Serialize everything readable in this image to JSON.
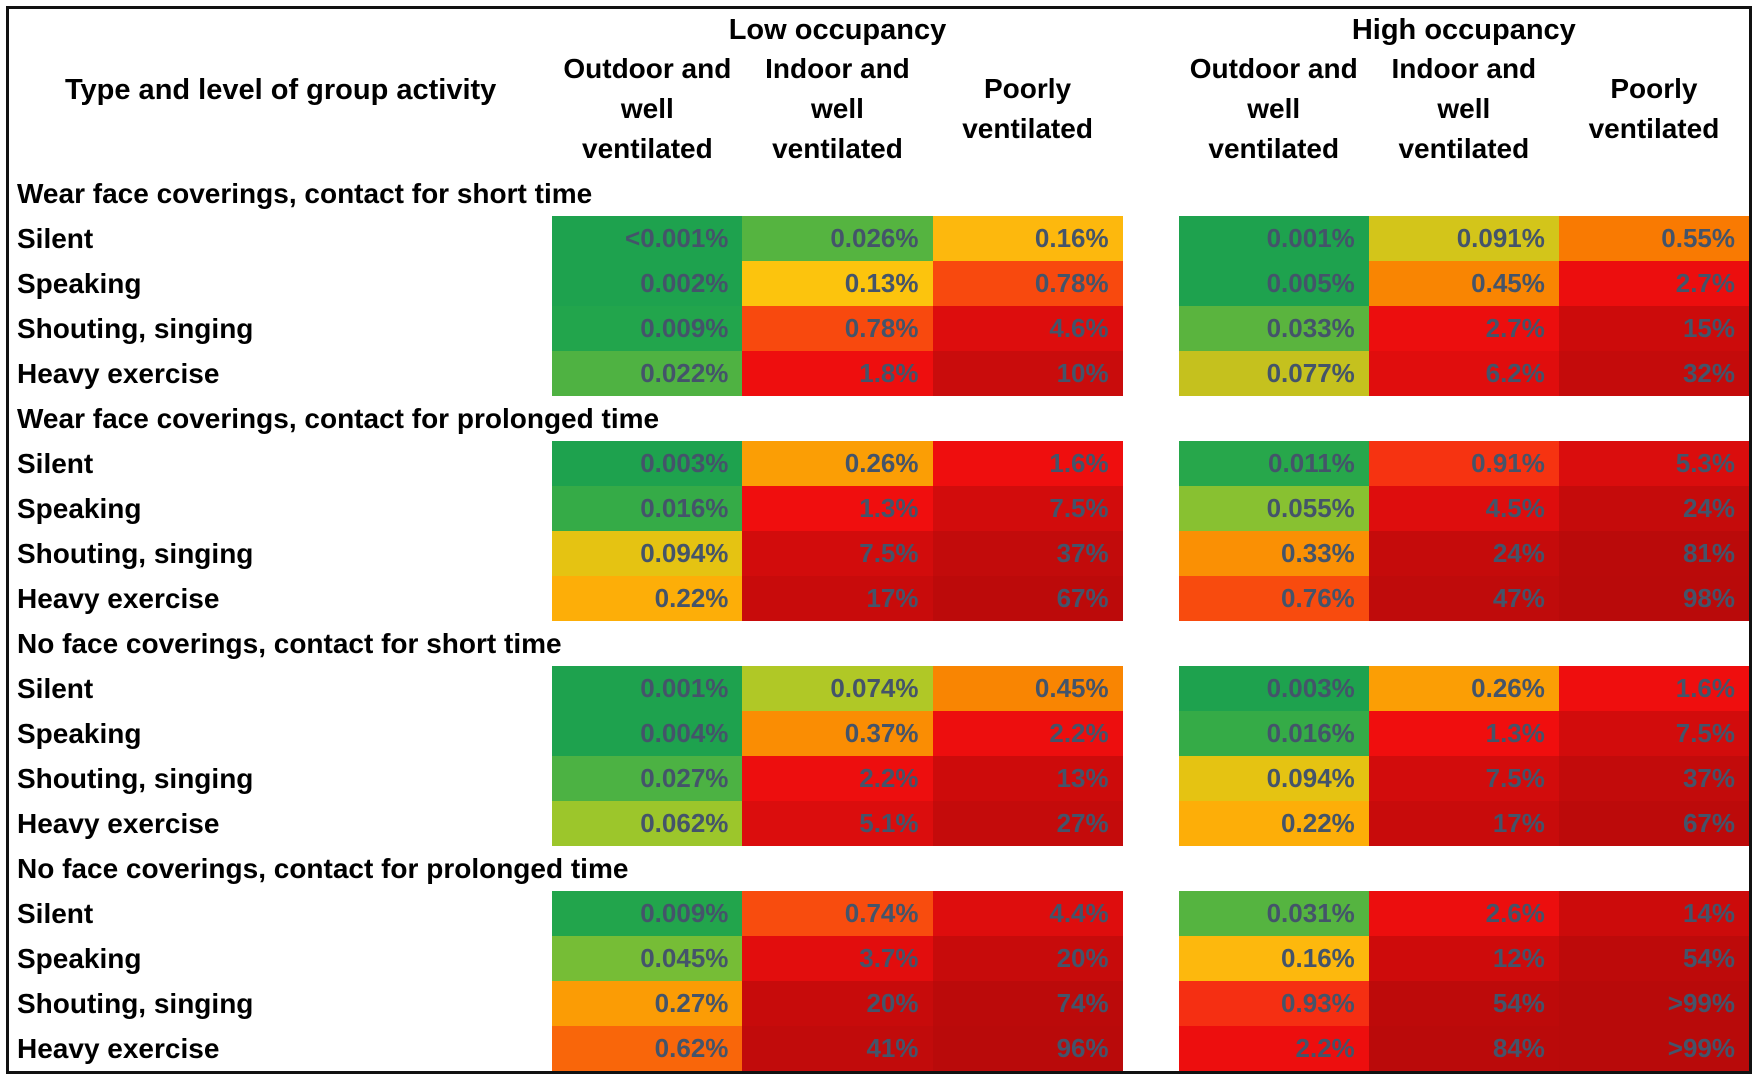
{
  "value_text_color": "#44546A",
  "chart_data": {
    "type": "heatmap",
    "row_axis_label": "Type and level of group activity",
    "col_groups": [
      "Low occupancy",
      "High occupancy"
    ],
    "columns": [
      "Outdoor and well ventilated",
      "Indoor and well ventilated",
      "Poorly ventilated"
    ],
    "unit": "%",
    "color_scale": {
      "low_risk": "#1ea24e",
      "mid_risk": "#fdc40d",
      "high_risk": "#b80a0a"
    },
    "sections": [
      {
        "title": "Wear face coverings, contact for short time",
        "rows": [
          {
            "label": "Silent",
            "cells": [
              {
                "v": "<0.001%",
                "c": "#1ea24e"
              },
              {
                "v": "0.026%",
                "c": "#55b440"
              },
              {
                "v": "0.16%",
                "c": "#fdb80d"
              },
              {
                "v": "0.001%",
                "c": "#1ea24e"
              },
              {
                "v": "0.091%",
                "c": "#d3c51a"
              },
              {
                "v": "0.55%",
                "c": "#f97a02"
              }
            ]
          },
          {
            "label": "Speaking",
            "cells": [
              {
                "v": "0.002%",
                "c": "#1ea24e"
              },
              {
                "v": "0.13%",
                "c": "#fcc40d"
              },
              {
                "v": "0.78%",
                "c": "#f8490e"
              },
              {
                "v": "0.005%",
                "c": "#1ea24e"
              },
              {
                "v": "0.45%",
                "c": "#f98502"
              },
              {
                "v": "2.7%",
                "c": "#ec0e0e"
              }
            ]
          },
          {
            "label": "Shouting, singing",
            "cells": [
              {
                "v": "0.009%",
                "c": "#22a54c"
              },
              {
                "v": "0.78%",
                "c": "#f8490e"
              },
              {
                "v": "4.6%",
                "c": "#dd0d0d"
              },
              {
                "v": "0.033%",
                "c": "#5ab43e"
              },
              {
                "v": "2.7%",
                "c": "#ec0e0e"
              },
              {
                "v": "15%",
                "c": "#cc0b0b"
              }
            ]
          },
          {
            "label": "Heavy exercise",
            "cells": [
              {
                "v": "0.022%",
                "c": "#4fb242"
              },
              {
                "v": "1.8%",
                "c": "#ee0e0e"
              },
              {
                "v": "10%",
                "c": "#c90c0c"
              },
              {
                "v": "0.077%",
                "c": "#c5c11e"
              },
              {
                "v": "6.2%",
                "c": "#e00d0d"
              },
              {
                "v": "32%",
                "c": "#c40b0b"
              }
            ]
          }
        ]
      },
      {
        "title": "Wear face coverings, contact for prolonged time",
        "rows": [
          {
            "label": "Silent",
            "cells": [
              {
                "v": "0.003%",
                "c": "#1ea24e"
              },
              {
                "v": "0.26%",
                "c": "#fb9e05"
              },
              {
                "v": "1.6%",
                "c": "#ef0e0e"
              },
              {
                "v": "0.011%",
                "c": "#27a74b"
              },
              {
                "v": "0.91%",
                "c": "#f63311"
              },
              {
                "v": "5.3%",
                "c": "#da0d0d"
              }
            ]
          },
          {
            "label": "Speaking",
            "cells": [
              {
                "v": "0.016%",
                "c": "#35ab47"
              },
              {
                "v": "1.3%",
                "c": "#f00e0e"
              },
              {
                "v": "7.5%",
                "c": "#d20c0c"
              },
              {
                "v": "0.055%",
                "c": "#88c131"
              },
              {
                "v": "4.5%",
                "c": "#de0d0d"
              },
              {
                "v": "24%",
                "c": "#c50b0b"
              }
            ]
          },
          {
            "label": "Shouting, singing",
            "cells": [
              {
                "v": "0.094%",
                "c": "#e5c312"
              },
              {
                "v": "7.5%",
                "c": "#d20c0c"
              },
              {
                "v": "37%",
                "c": "#c20b0b"
              },
              {
                "v": "0.33%",
                "c": "#fa9004"
              },
              {
                "v": "24%",
                "c": "#c50b0b"
              },
              {
                "v": "81%",
                "c": "#ba0a0a"
              }
            ]
          },
          {
            "label": "Heavy exercise",
            "cells": [
              {
                "v": "0.22%",
                "c": "#fdae08"
              },
              {
                "v": "17%",
                "c": "#c80b0b"
              },
              {
                "v": "67%",
                "c": "#bc0a0a"
              },
              {
                "v": "0.76%",
                "c": "#f84b0e"
              },
              {
                "v": "47%",
                "c": "#bf0b0b"
              },
              {
                "v": "98%",
                "c": "#b90a0a"
              }
            ]
          }
        ]
      },
      {
        "title": "No face coverings, contact for short time",
        "rows": [
          {
            "label": "Silent",
            "cells": [
              {
                "v": "0.001%",
                "c": "#1ea24e"
              },
              {
                "v": "0.074%",
                "c": "#b0c826"
              },
              {
                "v": "0.45%",
                "c": "#f98502"
              },
              {
                "v": "0.003%",
                "c": "#1ea24e"
              },
              {
                "v": "0.26%",
                "c": "#fb9e05"
              },
              {
                "v": "1.6%",
                "c": "#ef0e0e"
              }
            ]
          },
          {
            "label": "Speaking",
            "cells": [
              {
                "v": "0.004%",
                "c": "#1ea24e"
              },
              {
                "v": "0.37%",
                "c": "#fa8d03"
              },
              {
                "v": "2.2%",
                "c": "#ed0e0e"
              },
              {
                "v": "0.016%",
                "c": "#35ab47"
              },
              {
                "v": "1.3%",
                "c": "#f00e0e"
              },
              {
                "v": "7.5%",
                "c": "#d20c0c"
              }
            ]
          },
          {
            "label": "Shouting, singing",
            "cells": [
              {
                "v": "0.027%",
                "c": "#4cb243"
              },
              {
                "v": "2.2%",
                "c": "#ed0e0e"
              },
              {
                "v": "13%",
                "c": "#cd0b0b"
              },
              {
                "v": "0.094%",
                "c": "#e5c312"
              },
              {
                "v": "7.5%",
                "c": "#d20c0c"
              },
              {
                "v": "37%",
                "c": "#c20b0b"
              }
            ]
          },
          {
            "label": "Heavy exercise",
            "cells": [
              {
                "v": "0.062%",
                "c": "#9cc62b"
              },
              {
                "v": "5.1%",
                "c": "#db0d0d"
              },
              {
                "v": "27%",
                "c": "#c40b0b"
              },
              {
                "v": "0.22%",
                "c": "#fdae08"
              },
              {
                "v": "17%",
                "c": "#c80b0b"
              },
              {
                "v": "67%",
                "c": "#bc0a0a"
              }
            ]
          }
        ]
      },
      {
        "title": "No face coverings, contact for prolonged time",
        "rows": [
          {
            "label": "Silent",
            "cells": [
              {
                "v": "0.009%",
                "c": "#22a54c"
              },
              {
                "v": "0.74%",
                "c": "#f84c0e"
              },
              {
                "v": "4.4%",
                "c": "#de0d0d"
              },
              {
                "v": "0.031%",
                "c": "#55b440"
              },
              {
                "v": "2.6%",
                "c": "#ec0e0e"
              },
              {
                "v": "14%",
                "c": "#cc0b0b"
              }
            ]
          },
          {
            "label": "Speaking",
            "cells": [
              {
                "v": "0.045%",
                "c": "#76bd36"
              },
              {
                "v": "3.7%",
                "c": "#e20d0d"
              },
              {
                "v": "20%",
                "c": "#c70b0b"
              },
              {
                "v": "0.16%",
                "c": "#fdb80d"
              },
              {
                "v": "12%",
                "c": "#ce0b0b"
              },
              {
                "v": "54%",
                "c": "#bd0a0a"
              }
            ]
          },
          {
            "label": "Shouting, singing",
            "cells": [
              {
                "v": "0.27%",
                "c": "#fb9c05"
              },
              {
                "v": "20%",
                "c": "#c70b0b"
              },
              {
                "v": "74%",
                "c": "#bb0a0a"
              },
              {
                "v": "0.93%",
                "c": "#f52f12"
              },
              {
                "v": "54%",
                "c": "#bd0a0a"
              },
              {
                "v": ">99%",
                "c": "#b80a0a"
              }
            ]
          },
          {
            "label": "Heavy exercise",
            "cells": [
              {
                "v": "0.62%",
                "c": "#f9660a"
              },
              {
                "v": "41%",
                "c": "#c10b0b"
              },
              {
                "v": "96%",
                "c": "#b90a0a"
              },
              {
                "v": "2.2%",
                "c": "#ed0e0e"
              },
              {
                "v": "84%",
                "c": "#ba0a0a"
              },
              {
                "v": ">99%",
                "c": "#b80a0a"
              }
            ]
          }
        ]
      }
    ]
  }
}
